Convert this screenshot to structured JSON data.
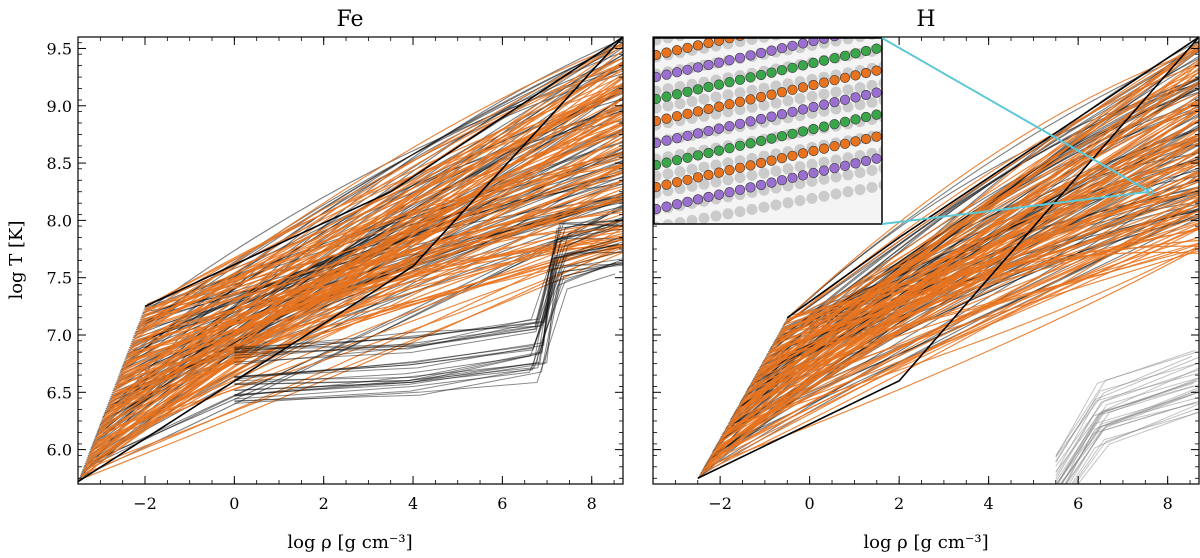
{
  "chart_data": [
    {
      "type": "line",
      "title": "Fe",
      "xlabel": "log ρ [g cm⁻³]",
      "ylabel": "log T [K]",
      "xlim": [
        -3.5,
        8.7
      ],
      "ylim": [
        5.7,
        9.6
      ],
      "xticks": [
        -2,
        0,
        2,
        4,
        6,
        8
      ],
      "xtick_labels": [
        "−2",
        "0",
        "2",
        "4",
        "6",
        "8"
      ],
      "yticks": [
        6.0,
        6.5,
        7.0,
        7.5,
        8.0,
        8.5,
        9.0,
        9.5
      ],
      "ytick_labels": [
        "6.0",
        "6.5",
        "7.0",
        "7.5",
        "8.0",
        "8.5",
        "9.0",
        "9.5"
      ],
      "series": [
        {
          "name": "black tracks (lower envelope)",
          "color": "#111111",
          "x": [
            -3.5,
            4.0,
            8.7
          ],
          "y": [
            5.72,
            7.6,
            9.6
          ]
        },
        {
          "name": "black tracks (upper envelope)",
          "color": "#111111",
          "x": [
            -2.0,
            3.5,
            8.7
          ],
          "y": [
            7.25,
            8.25,
            9.6
          ]
        },
        {
          "name": "orange tracks (representative)",
          "color": "#e8731f",
          "x": [
            -3.0,
            2.0,
            6.0,
            8.7
          ],
          "y": [
            6.0,
            7.2,
            8.2,
            8.9
          ]
        },
        {
          "name": "black plateau tracks",
          "color": "#111111",
          "x": [
            0.0,
            4.0,
            6.8,
            7.3,
            8.7
          ],
          "y": [
            6.65,
            6.75,
            6.9,
            7.7,
            7.8
          ]
        }
      ]
    },
    {
      "type": "line",
      "title": "H",
      "xlabel": "log ρ [g cm⁻³]",
      "ylabel": "",
      "xlim": [
        -3.5,
        8.7
      ],
      "ylim": [
        5.7,
        9.6
      ],
      "xticks": [
        -2,
        0,
        2,
        4,
        6,
        8
      ],
      "xtick_labels": [
        "−2",
        "0",
        "2",
        "4",
        "6",
        "8"
      ],
      "series": [
        {
          "name": "black tracks (lower envelope)",
          "color": "#111111",
          "x": [
            -2.5,
            2.0,
            8.7
          ],
          "y": [
            5.75,
            6.6,
            9.6
          ]
        },
        {
          "name": "black tracks (upper envelope)",
          "color": "#111111",
          "x": [
            -0.5,
            2.0,
            8.7
          ],
          "y": [
            7.15,
            7.85,
            9.6
          ]
        },
        {
          "name": "orange tracks (representative)",
          "color": "#e8731f",
          "x": [
            -2.0,
            2.0,
            6.0,
            8.7
          ],
          "y": [
            6.0,
            7.4,
            8.5,
            9.0
          ]
        },
        {
          "name": "low-temperature tracks",
          "color": "#888888",
          "x": [
            5.5,
            6.5,
            8.7
          ],
          "y": [
            5.7,
            6.3,
            6.6
          ]
        }
      ],
      "inset_markers": {
        "zoom_point": [
          7.6,
          8.25
        ],
        "colors": [
          "#e8731f",
          "#9b6fcf",
          "#3aa64a"
        ]
      }
    }
  ]
}
